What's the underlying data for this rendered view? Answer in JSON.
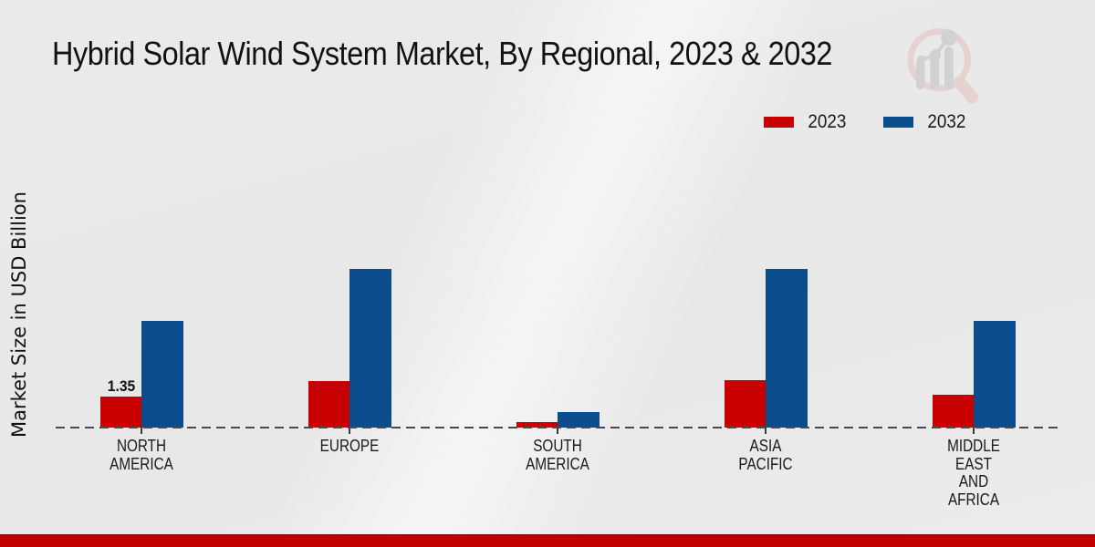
{
  "page": {
    "background_color": "#e9e9e9",
    "footer_color": "#c20000"
  },
  "header": {
    "title": "Hybrid Solar Wind System Market, By Regional, 2023 & 2032"
  },
  "legend": {
    "items": [
      {
        "label": "2023",
        "color": "#c90002"
      },
      {
        "label": "2032",
        "color": "#0b4c8c"
      }
    ]
  },
  "chart_data": {
    "type": "bar",
    "title": "Hybrid Solar Wind System Market, By Regional, 2023 & 2032",
    "ylabel": "Market Size in USD Billion",
    "xlabel": "",
    "categories": [
      "NORTH\nAMERICA",
      "EUROPE",
      "SOUTH\nAMERICA",
      "ASIA\nPACIFIC",
      "MIDDLE\nEAST\nAND\nAFRICA"
    ],
    "series": [
      {
        "name": "2023",
        "color": "#c90002",
        "values": [
          1.35,
          2.0,
          0.25,
          2.05,
          1.4
        ]
      },
      {
        "name": "2032",
        "color": "#0b4c8c",
        "values": [
          4.6,
          6.85,
          0.65,
          6.85,
          4.6
        ]
      }
    ],
    "data_labels": [
      {
        "series_index": 0,
        "category_index": 0,
        "text": "1.35"
      }
    ],
    "ylim": [
      0,
      14.5
    ],
    "grid": false,
    "legend_position": "top-right",
    "baseline_style": "dashed"
  },
  "watermark": {
    "icon": "magnifier-bar-chart-logo"
  }
}
